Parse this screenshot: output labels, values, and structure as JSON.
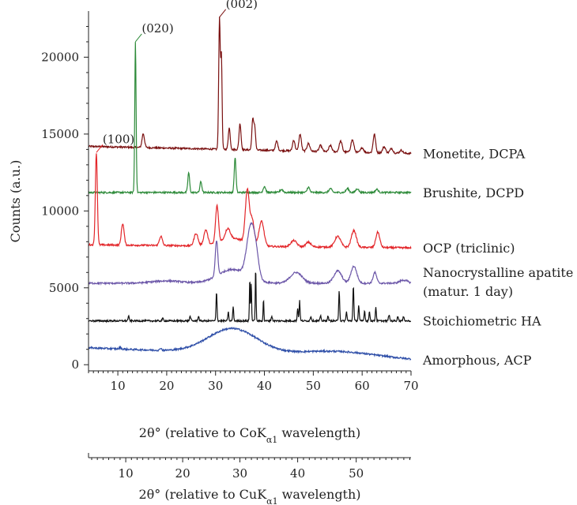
{
  "chart_data": {
    "type": "line",
    "ylabel": "Counts (a.u.)",
    "xlabel_primary": {
      "prefix": "2θ° (relative to CoK",
      "subscript": "α1",
      "suffix": " wavelength)"
    },
    "xlabel_secondary": {
      "prefix": "2θ° (relative to CuK",
      "subscript": "α1",
      "suffix": " wavelength)"
    },
    "x_range": [
      4,
      70
    ],
    "y_range": [
      -400,
      23000
    ],
    "x_ticks": [
      10,
      20,
      30,
      40,
      50,
      60,
      70
    ],
    "y_ticks": [
      0,
      5000,
      10000,
      15000,
      20000
    ],
    "cu_ticks": [
      10,
      20,
      30,
      40,
      50
    ],
    "peak_labels": [
      {
        "text": "(020)",
        "x": 13.6,
        "y": 21000,
        "color": "#2e8b3a"
      },
      {
        "text": "(002)",
        "x": 30.8,
        "y": 22600,
        "color": "#7a1010"
      },
      {
        "text": "(100)",
        "x": 5.6,
        "y": 13800,
        "color": "#e3262a"
      }
    ],
    "series": [
      {
        "name": "Monetite, DCPA",
        "color": "#7a1010",
        "baseline": 14200,
        "slope": -7,
        "peaks": [
          [
            15.2,
            900,
            0.25
          ],
          [
            30.8,
            8500,
            0.16
          ],
          [
            31.2,
            6000,
            0.14
          ],
          [
            32.8,
            1400,
            0.2
          ],
          [
            35.0,
            1700,
            0.2
          ],
          [
            37.6,
            1900,
            0.18
          ],
          [
            38.0,
            1500,
            0.18
          ],
          [
            42.5,
            600,
            0.25
          ],
          [
            46.0,
            700,
            0.25
          ],
          [
            47.3,
            1100,
            0.25
          ],
          [
            49.0,
            500,
            0.3
          ],
          [
            51.5,
            400,
            0.3
          ],
          [
            53.5,
            400,
            0.3
          ],
          [
            55.6,
            700,
            0.3
          ],
          [
            58.0,
            800,
            0.3
          ],
          [
            60.0,
            300,
            0.3
          ],
          [
            62.5,
            1200,
            0.25
          ],
          [
            64.5,
            400,
            0.3
          ],
          [
            66.0,
            300,
            0.3
          ],
          [
            68.0,
            200,
            0.3
          ]
        ],
        "broad": []
      },
      {
        "name": "Brushite, DCPD",
        "color": "#2e8b3a",
        "baseline": 11200,
        "slope": 0,
        "peaks": [
          [
            13.6,
            9800,
            0.14
          ],
          [
            24.5,
            1300,
            0.18
          ],
          [
            27.0,
            700,
            0.2
          ],
          [
            34.0,
            2300,
            0.18
          ],
          [
            40.0,
            400,
            0.25
          ],
          [
            43.5,
            200,
            0.3
          ],
          [
            49.0,
            350,
            0.25
          ],
          [
            53.5,
            250,
            0.3
          ],
          [
            57.0,
            250,
            0.3
          ],
          [
            59.0,
            250,
            0.3
          ],
          [
            63.0,
            200,
            0.3
          ]
        ],
        "broad": []
      },
      {
        "name": "OCP (triclinic)",
        "color": "#e3262a",
        "baseline": 7800,
        "slope": -3,
        "peaks": [
          [
            5.6,
            6000,
            0.2
          ],
          [
            11.0,
            1400,
            0.28
          ],
          [
            18.8,
            600,
            0.3
          ],
          [
            26.0,
            800,
            0.4
          ],
          [
            28.0,
            1000,
            0.4
          ],
          [
            30.3,
            2400,
            0.3
          ],
          [
            32.5,
            700,
            0.5
          ],
          [
            36.5,
            3400,
            0.4
          ],
          [
            37.5,
            1600,
            0.4
          ],
          [
            39.4,
            1600,
            0.5
          ],
          [
            46.0,
            400,
            0.6
          ],
          [
            49.0,
            300,
            0.5
          ],
          [
            55.0,
            700,
            0.6
          ],
          [
            58.3,
            1100,
            0.5
          ],
          [
            63.2,
            1000,
            0.4
          ]
        ],
        "broad": [
          [
            33.5,
            500,
            2.5
          ]
        ]
      },
      {
        "name": "Nanocrystalline apatite",
        "name_line2": "(matur. 1 day)",
        "color": "#6b56a8",
        "baseline": 5300,
        "slope": 0,
        "peaks": [
          [
            30.2,
            2300,
            0.25
          ],
          [
            37.2,
            3200,
            0.8
          ],
          [
            38.3,
            1200,
            0.6
          ],
          [
            46.5,
            700,
            1.2
          ],
          [
            55.0,
            800,
            0.8
          ],
          [
            58.3,
            1100,
            0.6
          ],
          [
            62.6,
            700,
            0.35
          ],
          [
            68.5,
            200,
            0.8
          ]
        ],
        "broad": [
          [
            33.5,
            900,
            3.0
          ],
          [
            20.0,
            150,
            3.0
          ]
        ]
      },
      {
        "name": "Stoichiometric HA",
        "color": "#111111",
        "baseline": 2850,
        "slope": 0,
        "peaks": [
          [
            12.2,
            300,
            0.12
          ],
          [
            19.2,
            150,
            0.15
          ],
          [
            24.8,
            300,
            0.12
          ],
          [
            26.5,
            300,
            0.12
          ],
          [
            30.2,
            1900,
            0.1
          ],
          [
            32.6,
            600,
            0.1
          ],
          [
            33.6,
            900,
            0.1
          ],
          [
            37.0,
            2800,
            0.08
          ],
          [
            37.3,
            2500,
            0.08
          ],
          [
            38.2,
            3500,
            0.08
          ],
          [
            39.8,
            1400,
            0.08
          ],
          [
            41.5,
            300,
            0.12
          ],
          [
            46.8,
            800,
            0.1
          ],
          [
            47.2,
            1300,
            0.1
          ],
          [
            49.5,
            300,
            0.12
          ],
          [
            51.5,
            300,
            0.12
          ],
          [
            53.0,
            300,
            0.12
          ],
          [
            55.3,
            2000,
            0.1
          ],
          [
            56.8,
            600,
            0.1
          ],
          [
            58.2,
            2300,
            0.1
          ],
          [
            59.3,
            1000,
            0.1
          ],
          [
            60.5,
            700,
            0.1
          ],
          [
            61.5,
            600,
            0.1
          ],
          [
            62.8,
            900,
            0.1
          ],
          [
            65.5,
            400,
            0.12
          ],
          [
            67.3,
            300,
            0.12
          ],
          [
            68.5,
            300,
            0.12
          ]
        ],
        "broad": []
      },
      {
        "name": "Amorphous, ACP",
        "color": "#2f4fa8",
        "baseline": 1100,
        "slope": -12,
        "peaks": [
          [
            18.8,
            150,
            0.15
          ],
          [
            10.5,
            100,
            0.2
          ]
        ],
        "broad": [
          [
            33.5,
            1600,
            5.0
          ],
          [
            55.0,
            380,
            8.0
          ]
        ]
      }
    ]
  }
}
